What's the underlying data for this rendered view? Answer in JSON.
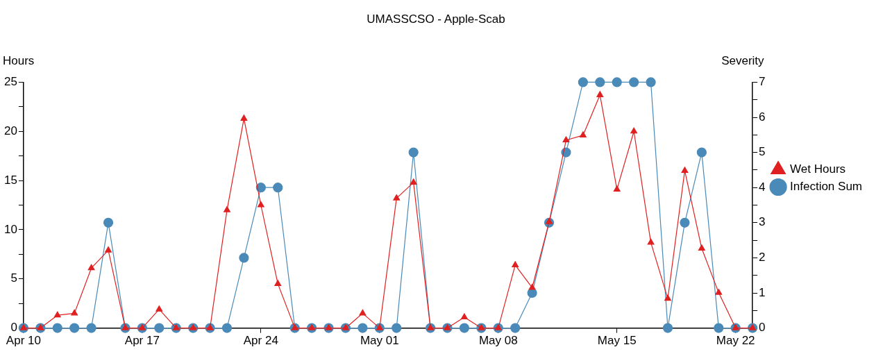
{
  "chart_data": {
    "type": "line",
    "title": "UMASSCSO - Apple-Scab",
    "ylabel": "Hours",
    "y2label": "Severity",
    "x": [
      "--04-10",
      "--04-11",
      "--04-12",
      "--04-13",
      "--04-14",
      "--04-15",
      "--04-16",
      "--04-17",
      "--04-18",
      "--04-19",
      "--04-20",
      "--04-21",
      "--04-22",
      "--04-23",
      "--04-24",
      "--04-25",
      "--04-26",
      "--04-27",
      "--04-28",
      "--04-29",
      "--04-30",
      "--05-01",
      "--05-02",
      "--05-03",
      "--05-04",
      "--05-05",
      "--05-06",
      "--05-07",
      "--05-08",
      "--05-09",
      "--05-10",
      "--05-11",
      "--05-12",
      "--05-13",
      "--05-14",
      "--05-15",
      "--05-16",
      "--05-17",
      "--05-18",
      "--05-19",
      "--05-20",
      "--05-21",
      "--05-22",
      "--05-23"
    ],
    "series": [
      {
        "name": "Wet Hours",
        "color": "#e02020",
        "marker": "triangle",
        "values": [
          0,
          0,
          1.3,
          1.5,
          6.1,
          7.9,
          0,
          0,
          1.9,
          0,
          0,
          0,
          12,
          21.3,
          12.5,
          4.5,
          0,
          0,
          0,
          0,
          1.5,
          0,
          13.2,
          14.8,
          0,
          0,
          1.1,
          0,
          0,
          6.4,
          4.1,
          10.8,
          19.1,
          19.6,
          23.7,
          14.1,
          20,
          8.7,
          3,
          16,
          8.1,
          3.6,
          0,
          0
        ]
      },
      {
        "name": "Infection Sum",
        "color": "#4a8ab8",
        "marker": "circle",
        "axis": "y2",
        "values": [
          0,
          0,
          0,
          0,
          0,
          3,
          0,
          0,
          0,
          0,
          0,
          0,
          0,
          2,
          4,
          4,
          0,
          0,
          0,
          0,
          0,
          0,
          0,
          5,
          0,
          0,
          0,
          0,
          0,
          0,
          1,
          3,
          5,
          7,
          7,
          7,
          7,
          7,
          0,
          3,
          5,
          0,
          0,
          0
        ]
      }
    ],
    "xlim": [
      "--04-10",
      "--05-23"
    ],
    "xticks": [
      {
        "value": "--04-10",
        "label": "Apr 10"
      },
      {
        "value": "--04-17",
        "label": "Apr 17"
      },
      {
        "value": "--04-24",
        "label": "Apr 24"
      },
      {
        "value": "--05-01",
        "label": "May 01"
      },
      {
        "value": "--05-08",
        "label": "May 08"
      },
      {
        "value": "--05-15",
        "label": "May 15"
      },
      {
        "value": "--05-22",
        "label": "May 22"
      }
    ],
    "ylim": [
      0,
      25
    ],
    "yticks": [
      0,
      {
        "value": 2.5,
        "label": null
      },
      5,
      {
        "value": 7.5,
        "label": null
      },
      10,
      {
        "value": 12.5,
        "label": null
      },
      15,
      {
        "value": 17.5,
        "label": null
      },
      20,
      {
        "value": 22.5,
        "label": null
      },
      25
    ],
    "y2lim": [
      0,
      7
    ],
    "y2ticks": [
      0,
      {
        "value": 0.5,
        "label": null
      },
      1,
      {
        "value": 1.5,
        "label": null
      },
      2,
      {
        "value": 2.5,
        "label": null
      },
      3,
      {
        "value": 3.5,
        "label": null
      },
      4,
      {
        "value": 4.5,
        "label": null
      },
      5,
      {
        "value": 5.5,
        "label": null
      },
      6,
      {
        "value": 6.5,
        "label": null
      },
      7
    ],
    "grid": false,
    "legend": "right",
    "line_style": "solid"
  }
}
